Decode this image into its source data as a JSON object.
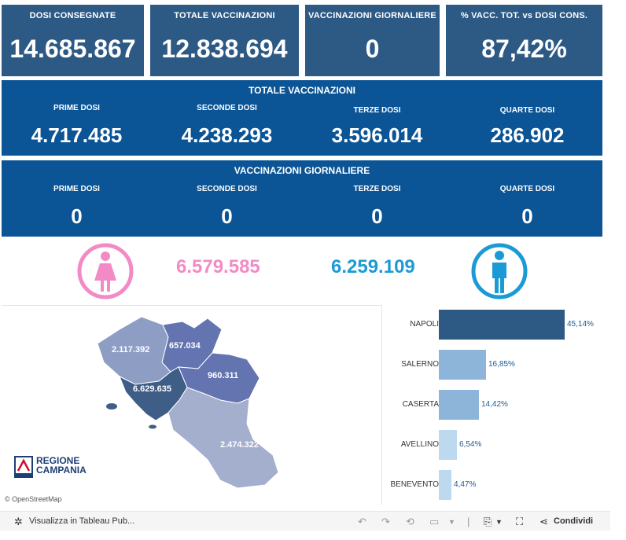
{
  "kpis": [
    {
      "label": "DOSI  CONSEGNATE",
      "value": "14.685.867"
    },
    {
      "label": "TOTALE VACCINAZIONI",
      "value": "12.838.694"
    },
    {
      "label": "VACCINAZIONI GIORNALIERE",
      "value": "0"
    },
    {
      "label": "% VACC. TOT. vs DOSI CONS.",
      "value": "87,42%"
    }
  ],
  "totale": {
    "title": "TOTALE VACCINAZIONI",
    "cols": [
      {
        "label": "PRIME DOSI",
        "value": "4.717.485"
      },
      {
        "label": "SECONDE DOSI",
        "value": "4.238.293"
      },
      {
        "label": "TERZE DOSI",
        "value": "3.596.014"
      },
      {
        "label": "QUARTE DOSI",
        "value": "286.902"
      }
    ]
  },
  "giornaliere": {
    "title": "VACCINAZIONI GIORNALIERE",
    "cols": [
      {
        "label": "PRIME DOSI",
        "value": "0"
      },
      {
        "label": "SECONDE DOSI",
        "value": "0"
      },
      {
        "label": "TERZE DOSI",
        "value": "0"
      },
      {
        "label": "QUARTE DOSI",
        "value": "0"
      }
    ]
  },
  "gender": {
    "female_value": "6.579.585",
    "male_value": "6.259.109",
    "female_color": "#f28bc5",
    "male_color": "#1b9ad6"
  },
  "map": {
    "labels": {
      "caserta": "2.117.392",
      "benevento": "657.034",
      "avellino": "960.311",
      "napoli": "6.629.635",
      "salerno": "2.474.322"
    },
    "logo_line1": "REGIONE",
    "logo_line2": "CAMPANIA",
    "attribution": "© OpenStreetMap"
  },
  "chart_data": {
    "type": "bar",
    "orientation": "horizontal",
    "categories": [
      "NAPOLI",
      "SALERNO",
      "CASERTA",
      "AVELLINO",
      "BENEVENTO"
    ],
    "values": [
      45.14,
      16.85,
      14.42,
      6.54,
      4.47
    ],
    "value_labels": [
      "45,14%",
      "16,85%",
      "14,42%",
      "6,54%",
      "4,47%"
    ],
    "colors": [
      "#2d5985",
      "#8db5da",
      "#8db5da",
      "#bcd9ef",
      "#bcd9ef"
    ]
  },
  "footer": {
    "tableau_label": "Visualizza in Tableau Pub...",
    "share_label": "Condividi"
  }
}
